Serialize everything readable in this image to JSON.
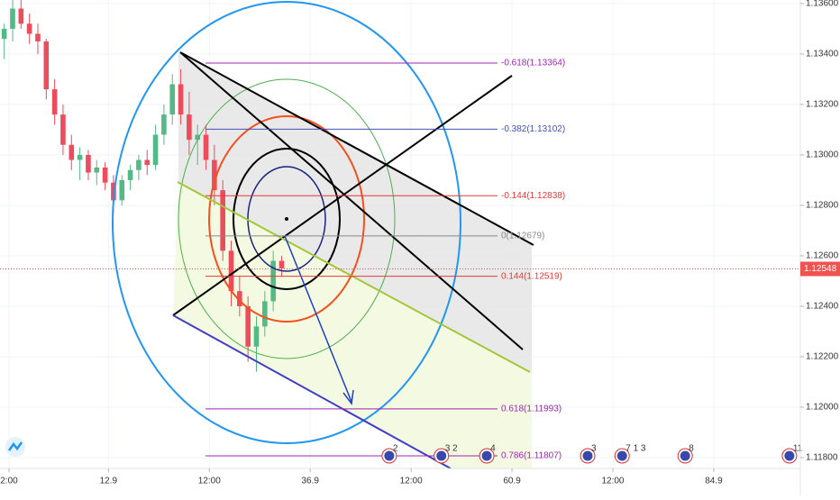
{
  "chart_data": {
    "type": "candlestick",
    "up_color": "#53b987",
    "down_color": "#eb4d5c",
    "x": [
      0.5,
      1.5,
      2.5,
      3.5,
      4.5,
      5.5,
      6.5,
      7.5,
      8.5,
      9.5,
      10.5,
      11.5,
      12.5,
      13.5,
      14.5,
      15.5,
      16.5,
      17.5,
      18.5,
      19.5,
      20.5,
      21.5,
      22.5,
      23.5,
      24.5,
      25.5,
      26.5,
      27.5,
      28.5,
      29.5,
      30.5,
      31.5,
      32.5,
      33.5
    ],
    "open": [
      1.1346,
      1.135,
      1.1358,
      1.1352,
      1.1348,
      1.1345,
      1.1326,
      1.1316,
      1.1304,
      1.1298,
      1.13,
      1.1293,
      1.1295,
      1.1289,
      1.1282,
      1.129,
      1.1294,
      1.1298,
      1.1296,
      1.1308,
      1.1316,
      1.1328,
      1.1316,
      1.1306,
      1.1308,
      1.1298,
      1.1286,
      1.1262,
      1.1246,
      1.124,
      1.1224,
      1.1232,
      1.1242,
      1.1258
    ],
    "high": [
      1.1352,
      1.1362,
      1.1362,
      1.1356,
      1.1352,
      1.1346,
      1.133,
      1.132,
      1.1308,
      1.1303,
      1.1302,
      1.1298,
      1.1297,
      1.1292,
      1.1292,
      1.1296,
      1.13,
      1.1302,
      1.1312,
      1.132,
      1.1332,
      1.1334,
      1.1325,
      1.1312,
      1.1312,
      1.1304,
      1.129,
      1.1266,
      1.1252,
      1.1244,
      1.1236,
      1.1246,
      1.1262,
      1.126
    ],
    "low": [
      1.1338,
      1.1345,
      1.135,
      1.1344,
      1.134,
      1.1322,
      1.1312,
      1.13,
      1.1294,
      1.129,
      1.129,
      1.1288,
      1.1286,
      1.1277,
      1.128,
      1.1286,
      1.129,
      1.1292,
      1.1294,
      1.1304,
      1.1312,
      1.1312,
      1.13,
      1.1296,
      1.1294,
      1.128,
      1.1258,
      1.124,
      1.1236,
      1.1218,
      1.1214,
      1.1228,
      1.1238,
      1.1252
    ],
    "close": [
      1.135,
      1.1358,
      1.1352,
      1.1348,
      1.1345,
      1.1326,
      1.1316,
      1.1304,
      1.1298,
      1.13,
      1.1293,
      1.1295,
      1.1289,
      1.1282,
      1.129,
      1.1294,
      1.1298,
      1.1296,
      1.1308,
      1.1316,
      1.1328,
      1.1316,
      1.1306,
      1.1308,
      1.1298,
      1.1286,
      1.1262,
      1.1246,
      1.124,
      1.1224,
      1.1232,
      1.1242,
      1.1258,
      1.1255
    ],
    "xlim": [
      0,
      95.2
    ],
    "xticks": [
      {
        "value": 1.07,
        "label": "2:00"
      },
      12.9,
      {
        "value": 24.9,
        "label": "12:00"
      },
      36.9,
      {
        "value": 48.9,
        "label": "12:00"
      },
      60.9,
      {
        "value": 72.9,
        "label": "12:00"
      },
      84.9
    ],
    "ylim": [
      1.11757,
      1.13614
    ],
    "yticks": [
      {
        "value": 1.136,
        "label": "1.13600"
      },
      {
        "value": 1.134,
        "label": "1.13400"
      },
      {
        "value": 1.132,
        "label": "1.13200"
      },
      {
        "value": 1.13,
        "label": "1.13000"
      },
      {
        "value": 1.128,
        "label": "1.12800"
      },
      {
        "value": 1.126,
        "label": "1.12600"
      },
      {
        "value": 1.124,
        "label": "1.12400"
      },
      {
        "value": 1.122,
        "label": "1.12200"
      },
      {
        "value": 1.12,
        "label": "1.12000"
      },
      {
        "value": 1.118,
        "label": "1.11800"
      }
    ],
    "levels": [
      {
        "label": "-0.618(1.13364)",
        "value": 1.13364,
        "color": "#9c27b0"
      },
      {
        "label": "-0.382(1.13102)",
        "value": 1.13102,
        "color": "#3f51b5"
      },
      {
        "label": "-0.144(1.12838)",
        "value": 1.12838,
        "color": "#e53935"
      },
      {
        "label": "0(1.12679)",
        "value": 1.12679,
        "color": "#888888"
      },
      {
        "label": "0.144(1.12519)",
        "value": 1.12519,
        "color": "#e53935"
      },
      {
        "label": "0.618(1.11993)",
        "value": 1.11993,
        "color": "#9c27b0"
      },
      {
        "label": "0.786(1.11807)",
        "value": 1.11807,
        "color": "#9c27b0"
      }
    ],
    "last_price": {
      "value": 1.12548,
      "color": "#ef5350"
    },
    "events": [
      {
        "x": 46.3,
        "label": "2"
      },
      {
        "x": 52.5,
        "label": "3 2"
      },
      {
        "x": 57.9,
        "label": "4"
      },
      {
        "x": 69.9,
        "label": "3"
      },
      {
        "x": 74.0,
        "label": "7 1 3"
      },
      {
        "x": 81.5,
        "label": "8"
      },
      {
        "x": 93.9,
        "label": "11"
      }
    ]
  }
}
